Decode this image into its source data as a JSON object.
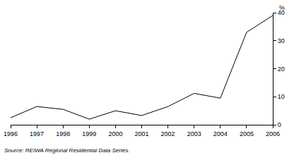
{
  "chart_data": {
    "type": "line",
    "x": [
      1996,
      1997,
      1998,
      1999,
      2000,
      2001,
      2002,
      2003,
      2004,
      2005,
      2006
    ],
    "values": [
      2.5,
      6.5,
      5.5,
      2,
      5,
      3.3,
      6.5,
      11.2,
      9.5,
      33,
      39
    ],
    "color": "#000000",
    "xlim": [
      1996,
      2006
    ],
    "xticks": [
      1996,
      1997,
      1998,
      1999,
      2000,
      2001,
      2002,
      2003,
      2004,
      2005,
      2006
    ],
    "ylim": [
      0,
      40
    ],
    "yticks": [
      0,
      10,
      20,
      30,
      40
    ],
    "y_label": "%",
    "source": "Source: REIWA Regional Residential Data Series.",
    "grid": false
  }
}
